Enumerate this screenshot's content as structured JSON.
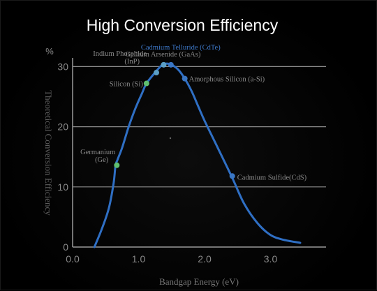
{
  "title": "High Conversion Efficiency",
  "chart_data": {
    "type": "line",
    "xlabel": "Bandgap Energy (eV)",
    "ylabel": "Theoretical Conversion Efficiency",
    "yunit": "%",
    "xlim": [
      0.0,
      3.5
    ],
    "ylim": [
      0,
      30
    ],
    "xticks": [
      "0.0",
      "1.0",
      "2.0",
      "3.0"
    ],
    "yticks": [
      "0",
      "10",
      "20",
      "30"
    ],
    "grid": "horizontal",
    "series": [
      {
        "x": [
          0.33,
          0.45,
          0.55,
          0.62,
          0.65,
          0.68,
          0.75,
          0.85,
          0.95,
          1.05,
          1.12,
          1.25,
          1.35,
          1.42,
          1.5,
          1.6,
          1.7,
          1.8,
          1.9,
          2.0,
          2.2,
          2.42,
          2.6,
          2.8,
          3.0,
          3.2,
          3.45
        ],
        "y": [
          0,
          3.2,
          6.5,
          10.5,
          13.5,
          14.5,
          16.5,
          20.0,
          23.0,
          25.5,
          27.2,
          29.0,
          30.2,
          30.5,
          30.3,
          29.5,
          28.0,
          26.0,
          23.5,
          21.0,
          16.5,
          11.5,
          7.2,
          4.0,
          2.0,
          1.2,
          0.7
        ]
      }
    ],
    "points": [
      {
        "label": "Germanium",
        "sublabel": "(Ge)",
        "x": 0.67,
        "y": 13.6,
        "color": "#5fbf6f"
      },
      {
        "label": "Silicon",
        "sublabel": "(Si)",
        "x": 1.12,
        "y": 27.2,
        "color": "#5fbf6f"
      },
      {
        "label": "Indium Phosphide",
        "sublabel": "(InP)",
        "x": 1.27,
        "y": 29.0,
        "color": "#5a9ec6"
      },
      {
        "label": "Gallium Arsenide",
        "sublabel": "(GaAs)",
        "x": 1.38,
        "y": 30.3,
        "color": "#5a9ec6"
      },
      {
        "label": "Cadmium Telluride",
        "sublabel": "(CdTe)",
        "x": 1.49,
        "y": 30.3,
        "color": "#3a76c4"
      },
      {
        "label": "Amorphous Silicon (a-Si)",
        "sublabel": "",
        "x": 1.7,
        "y": 28.0,
        "color": "#3a76c4"
      },
      {
        "label": "Cadmium Sulfide(CdS)",
        "sublabel": "",
        "x": 2.42,
        "y": 11.8,
        "color": "#3a76c4"
      }
    ],
    "line_color": "#2f6fc4",
    "grid_color": "#8c8c8c",
    "text_color": "#8a8a8a",
    "highlight_label_color": "#3d78c8"
  }
}
